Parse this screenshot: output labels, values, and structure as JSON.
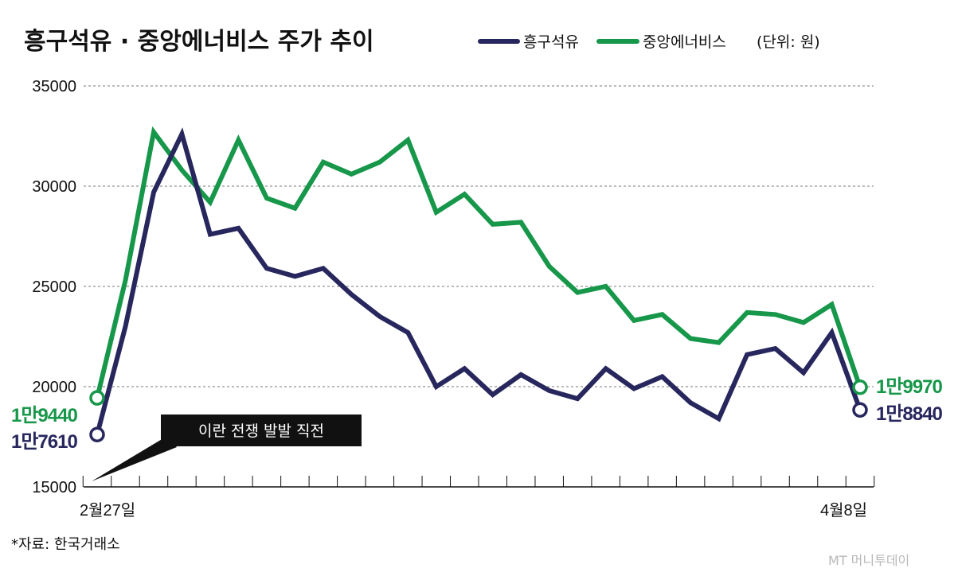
{
  "chart_data": {
    "type": "line",
    "title": "흥구석유 · 중앙에너비스 주가 추이",
    "unit_note": "(단위: 원)",
    "x_start_label": "2월27일",
    "x_end_label": "4월8일",
    "ylim": [
      15000,
      35000
    ],
    "y_ticks": [
      15000,
      20000,
      25000,
      30000,
      35000
    ],
    "grid": true,
    "legend_position": "top",
    "series": [
      {
        "name": "흥구석유",
        "color": "#27275e",
        "values": [
          17610,
          23000,
          29700,
          32600,
          27600,
          27900,
          25900,
          25500,
          25900,
          24600,
          23500,
          22700,
          20000,
          20900,
          19600,
          20600,
          19800,
          19400,
          20900,
          19900,
          20500,
          19200,
          18400,
          21600,
          21900,
          20700,
          22700,
          18840
        ],
        "start_label": "1만7610",
        "end_label": "1만8840"
      },
      {
        "name": "중앙에너비스",
        "color": "#17974a",
        "values": [
          19440,
          25300,
          32700,
          30800,
          29200,
          32300,
          29400,
          28900,
          31200,
          30600,
          31200,
          32300,
          28700,
          29600,
          28100,
          28200,
          26000,
          24700,
          25000,
          23300,
          23600,
          22400,
          22200,
          23700,
          23600,
          23200,
          24100,
          19970
        ],
        "start_label": "1만9440",
        "end_label": "1만9970"
      }
    ],
    "annotation": "이란 전쟁 발발 직전"
  },
  "source_note": "*자료:  한국거래소",
  "credit": "MT 머니투데이"
}
